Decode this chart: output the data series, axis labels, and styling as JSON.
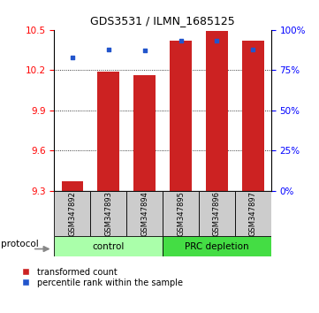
{
  "title": "GDS3531 / ILMN_1685125",
  "samples": [
    "GSM347892",
    "GSM347893",
    "GSM347894",
    "GSM347895",
    "GSM347896",
    "GSM347897"
  ],
  "transformed_counts": [
    9.37,
    10.19,
    10.16,
    10.42,
    10.49,
    10.42
  ],
  "percentile_ranks": [
    83,
    88,
    87,
    93,
    93,
    88
  ],
  "ylim_left": [
    9.3,
    10.5
  ],
  "ylim_right": [
    0,
    100
  ],
  "yticks_left": [
    9.3,
    9.6,
    9.9,
    10.2,
    10.5
  ],
  "yticks_right": [
    0,
    25,
    50,
    75,
    100
  ],
  "bar_color": "#cc2222",
  "dot_color": "#2255cc",
  "bar_bottom": 9.3,
  "control_color": "#aaffaa",
  "prc_color": "#44dd44",
  "group_label_control": "control",
  "group_label_prc": "PRC depletion",
  "protocol_label": "protocol",
  "legend_bar": "transformed count",
  "legend_dot": "percentile rank within the sample"
}
